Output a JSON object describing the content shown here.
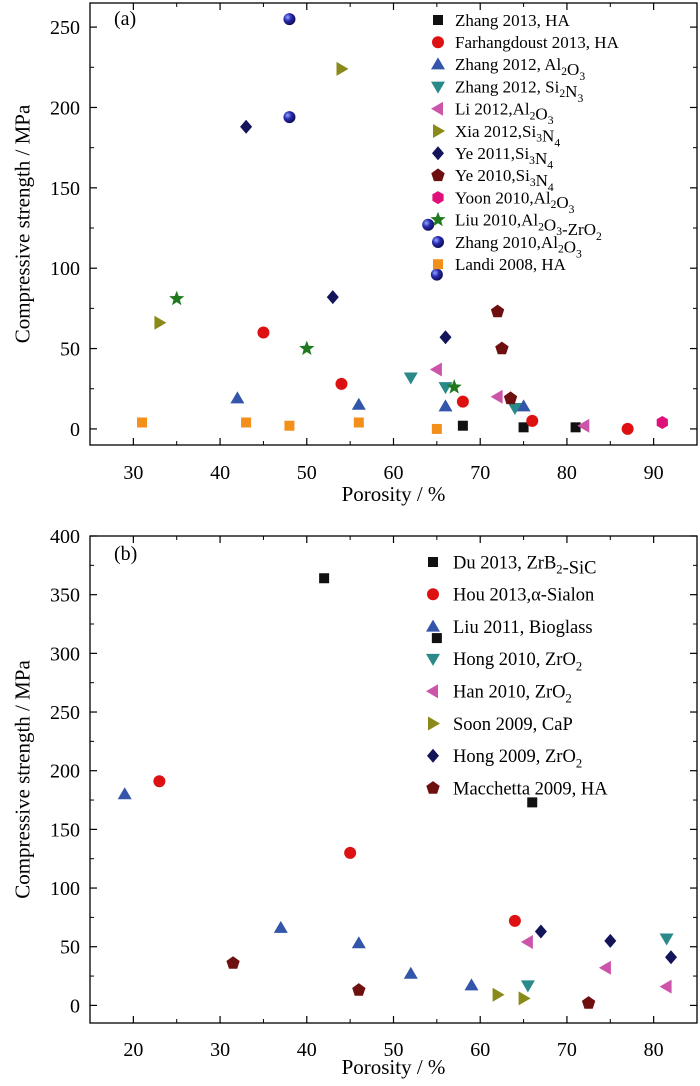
{
  "colors": {
    "black": "#111111",
    "red": "#dd1111",
    "blue": "#3355aa",
    "teal": "#2a8a8a",
    "pink": "#cc55aa",
    "olive": "#8a8a1a",
    "navy": "#14145a",
    "maroon": "#6e1010",
    "magenta": "#e0107a",
    "green": "#1f7a1f",
    "orange": "#f39019"
  },
  "chart_data": [
    {
      "type": "scatter",
      "panel_label": "(a)",
      "xlabel": "Porosity / %",
      "ylabel": "Compressive strength / MPa",
      "xlim": [
        25,
        95
      ],
      "ylim": [
        -10,
        265
      ],
      "xticks": [
        30,
        40,
        50,
        60,
        70,
        80,
        90
      ],
      "yticks": [
        0,
        50,
        100,
        150,
        200,
        250
      ],
      "legend_position": "top-right",
      "series": [
        {
          "name": "Zhang 2013, HA",
          "legend": [
            {
              "t": "Zhang 2013, HA"
            }
          ],
          "marker": "square",
          "color": "black",
          "points": [
            [
              68,
              2
            ],
            [
              75,
              1
            ],
            [
              81,
              1
            ]
          ]
        },
        {
          "name": "Farhangdoust 2013, HA",
          "legend": [
            {
              "t": "Farhangdoust 2013, HA"
            }
          ],
          "marker": "circle",
          "color": "red",
          "points": [
            [
              45,
              60
            ],
            [
              54,
              28
            ],
            [
              68,
              17
            ],
            [
              76,
              5
            ],
            [
              87,
              0
            ]
          ]
        },
        {
          "name": "Zhang 2012, Al2O3",
          "legend": [
            {
              "t": "Zhang 2012, Al"
            },
            {
              "t": "2",
              "sub": true
            },
            {
              "t": "O"
            },
            {
              "t": "3",
              "sub": true
            }
          ],
          "marker": "triangle-up",
          "color": "blue",
          "points": [
            [
              42,
              19
            ],
            [
              56,
              15
            ],
            [
              66,
              14
            ],
            [
              75,
              14
            ]
          ]
        },
        {
          "name": "Zhang 2012, Si2N3",
          "legend": [
            {
              "t": "Zhang 2012, Si"
            },
            {
              "t": "2",
              "sub": true
            },
            {
              "t": "N"
            },
            {
              "t": "3",
              "sub": true
            }
          ],
          "marker": "triangle-down",
          "color": "teal",
          "points": [
            [
              62,
              32
            ],
            [
              66,
              26
            ],
            [
              74,
              13
            ]
          ]
        },
        {
          "name": "Li 2012,Al2O3",
          "legend": [
            {
              "t": "Li 2012,Al"
            },
            {
              "t": "2",
              "sub": true
            },
            {
              "t": "O"
            },
            {
              "t": "3",
              "sub": true
            }
          ],
          "marker": "triangle-left",
          "color": "pink",
          "points": [
            [
              65,
              37
            ],
            [
              72,
              20
            ],
            [
              82,
              2
            ]
          ]
        },
        {
          "name": "Xia 2012,Si3N4",
          "legend": [
            {
              "t": "Xia 2012,Si"
            },
            {
              "t": "3",
              "sub": true
            },
            {
              "t": "N"
            },
            {
              "t": "4",
              "sub": true
            }
          ],
          "marker": "triangle-right",
          "color": "olive",
          "points": [
            [
              33,
              66
            ],
            [
              54,
              224
            ]
          ]
        },
        {
          "name": "Ye 2011,Si3N4",
          "legend": [
            {
              "t": "Ye 2011,Si"
            },
            {
              "t": "3",
              "sub": true
            },
            {
              "t": "N"
            },
            {
              "t": "4",
              "sub": true
            }
          ],
          "marker": "diamond",
          "color": "navy",
          "points": [
            [
              43,
              188
            ],
            [
              53,
              82
            ],
            [
              66,
              57
            ]
          ]
        },
        {
          "name": "Ye 2010,Si3N4",
          "legend": [
            {
              "t": "Ye 2010,Si"
            },
            {
              "t": "3",
              "sub": true
            },
            {
              "t": "N"
            },
            {
              "t": "4",
              "sub": true
            }
          ],
          "marker": "pentagon",
          "color": "maroon",
          "points": [
            [
              72,
              73
            ],
            [
              72.5,
              50
            ],
            [
              73.5,
              19
            ]
          ]
        },
        {
          "name": "Yoon 2010,Al2O3",
          "legend": [
            {
              "t": "Yoon 2010,Al"
            },
            {
              "t": "2",
              "sub": true
            },
            {
              "t": "O"
            },
            {
              "t": "3",
              "sub": true
            }
          ],
          "marker": "hexagon",
          "color": "magenta",
          "points": [
            [
              91,
              4
            ]
          ]
        },
        {
          "name": "Liu 2010,Al2O3-ZrO2",
          "legend": [
            {
              "t": "Liu 2010,Al"
            },
            {
              "t": "2",
              "sub": true
            },
            {
              "t": "O"
            },
            {
              "t": "3",
              "sub": true
            },
            {
              "t": "-ZrO"
            },
            {
              "t": "2",
              "sub": true
            }
          ],
          "marker": "star",
          "color": "green",
          "points": [
            [
              35,
              81
            ],
            [
              50,
              50
            ],
            [
              67,
              26
            ]
          ]
        },
        {
          "name": "Zhang 2010,Al2O3",
          "legend": [
            {
              "t": "Zhang 2010,Al"
            },
            {
              "t": "2",
              "sub": true
            },
            {
              "t": "O"
            },
            {
              "t": "3",
              "sub": true
            }
          ],
          "marker": "sphere",
          "color": "navy",
          "points": [
            [
              48,
              255
            ],
            [
              48,
              194
            ],
            [
              64,
              127
            ],
            [
              65,
              96
            ]
          ]
        },
        {
          "name": "Landi 2008, HA",
          "legend": [
            {
              "t": "Landi 2008, HA"
            }
          ],
          "marker": "square",
          "color": "orange",
          "points": [
            [
              31,
              4
            ],
            [
              43,
              4
            ],
            [
              48,
              2
            ],
            [
              56,
              4
            ],
            [
              65,
              0
            ]
          ]
        }
      ]
    },
    {
      "type": "scatter",
      "panel_label": "(b)",
      "xlabel": "Porosity / %",
      "ylabel": "Compressive strength / MPa",
      "xlim": [
        15,
        85
      ],
      "ylim": [
        -15,
        400
      ],
      "xticks": [
        20,
        30,
        40,
        50,
        60,
        70,
        80
      ],
      "yticks": [
        0,
        50,
        100,
        150,
        200,
        250,
        300,
        350,
        400
      ],
      "legend_position": "top-right",
      "series": [
        {
          "name": "Du 2013, ZrB2-SiC",
          "legend": [
            {
              "t": "Du 2013, ZrB"
            },
            {
              "t": "2",
              "sub": true
            },
            {
              "t": "-SiC"
            }
          ],
          "marker": "square",
          "color": "black",
          "points": [
            [
              42,
              364
            ],
            [
              55,
              313
            ],
            [
              66,
              173
            ]
          ]
        },
        {
          "name": "Hou 2013,α-Sialon",
          "legend": [
            {
              "t": "Hou 2013,α-Sialon"
            }
          ],
          "marker": "circle",
          "color": "red",
          "points": [
            [
              23,
              191
            ],
            [
              45,
              130
            ],
            [
              64,
              72
            ]
          ]
        },
        {
          "name": "Liu 2011, Bioglass",
          "legend": [
            {
              "t": "Liu 2011, Bioglass"
            }
          ],
          "marker": "triangle-up",
          "color": "blue",
          "points": [
            [
              19,
              180
            ],
            [
              37,
              66
            ],
            [
              46,
              53
            ],
            [
              52,
              27
            ],
            [
              59,
              17
            ]
          ]
        },
        {
          "name": "Hong 2010, ZrO2",
          "legend": [
            {
              "t": "Hong 2010, ZrO"
            },
            {
              "t": "2",
              "sub": true
            }
          ],
          "marker": "triangle-down",
          "color": "teal",
          "points": [
            [
              65.5,
              17
            ],
            [
              81.5,
              57
            ]
          ]
        },
        {
          "name": "Han 2010, ZrO2",
          "legend": [
            {
              "t": "Han 2010, ZrO"
            },
            {
              "t": "2",
              "sub": true
            }
          ],
          "marker": "triangle-left",
          "color": "pink",
          "points": [
            [
              65.5,
              54
            ],
            [
              74.5,
              32
            ],
            [
              81.5,
              16
            ]
          ]
        },
        {
          "name": "Soon 2009, CaP",
          "legend": [
            {
              "t": "Soon 2009, CaP"
            }
          ],
          "marker": "triangle-right",
          "color": "olive",
          "points": [
            [
              62,
              9
            ],
            [
              65,
              6
            ]
          ]
        },
        {
          "name": "Hong 2009, ZrO2",
          "legend": [
            {
              "t": "Hong 2009, ZrO"
            },
            {
              "t": "2",
              "sub": true
            }
          ],
          "marker": "diamond",
          "color": "navy",
          "points": [
            [
              67,
              63
            ],
            [
              75,
              55
            ],
            [
              82,
              41
            ]
          ]
        },
        {
          "name": "Macchetta 2009, HA",
          "legend": [
            {
              "t": "Macchetta 2009, HA"
            }
          ],
          "marker": "pentagon",
          "color": "maroon",
          "points": [
            [
              31.5,
              36
            ],
            [
              46,
              13
            ],
            [
              72.5,
              2
            ]
          ]
        }
      ]
    }
  ]
}
